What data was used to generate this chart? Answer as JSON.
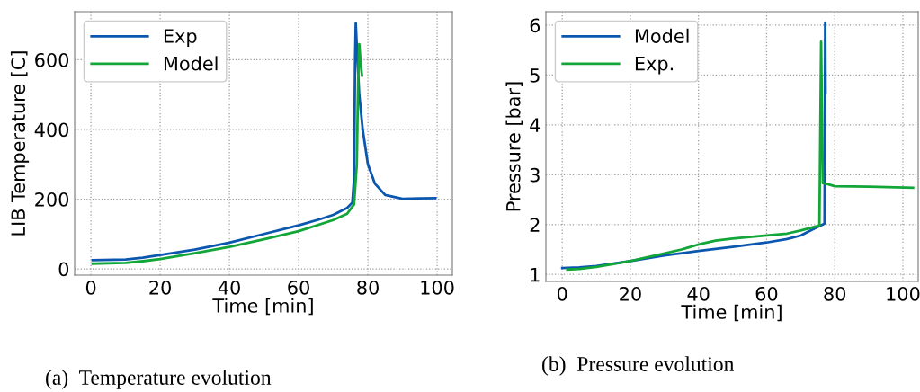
{
  "chart_data": [
    {
      "type": "line",
      "xlabel": "Time [min]",
      "ylabel": "LIB Temperature [C]",
      "xlim": [
        -4.7,
        104.4
      ],
      "ylim": [
        -18,
        738
      ],
      "xticks": [
        0,
        20,
        40,
        60,
        80,
        100
      ],
      "yticks": [
        0,
        200,
        400,
        600
      ],
      "grid": true,
      "legend": "top left",
      "annotations": [
        "(a)  Temperature evolution"
      ],
      "series": [
        {
          "name": "Exp",
          "color": "#0b57b0",
          "x": [
            0.5,
            10,
            15,
            20,
            30,
            40,
            50,
            60,
            66,
            70,
            74,
            75.5,
            76,
            76.3,
            76.5,
            76.8,
            77.5,
            78.5,
            80,
            82,
            85,
            90,
            95,
            99.5
          ],
          "values": [
            25,
            27,
            32,
            40,
            55,
            75,
            100,
            125,
            142,
            155,
            175,
            190,
            260,
            600,
            705,
            640,
            500,
            400,
            300,
            245,
            212,
            201,
            202,
            203
          ]
        },
        {
          "name": "Model",
          "color": "#12a538",
          "x": [
            0.5,
            10,
            15,
            20,
            30,
            40,
            50,
            60,
            70,
            74,
            76,
            76.8,
            77.2,
            77.5,
            78,
            78.3
          ],
          "values": [
            15,
            17,
            22,
            28,
            45,
            63,
            85,
            108,
            140,
            158,
            185,
            300,
            550,
            645,
            580,
            555
          ]
        }
      ]
    },
    {
      "type": "line",
      "xlabel": "Time [min]",
      "ylabel": "Pressure [bar]",
      "xlim": [
        -4.8,
        104.5
      ],
      "ylim": [
        0.86,
        6.27
      ],
      "xticks": [
        0,
        20,
        40,
        60,
        80,
        100
      ],
      "yticks": [
        1,
        2,
        3,
        4,
        5,
        6
      ],
      "grid": true,
      "legend": "top left",
      "annotations": [
        "(b)  Pressure evolution"
      ],
      "series": [
        {
          "name": "Model",
          "color": "#0b57b0",
          "x": [
            0,
            5,
            10,
            20,
            30,
            40,
            50,
            60,
            66,
            70,
            74,
            77,
            77.2,
            77.3
          ],
          "values": [
            1.13,
            1.14,
            1.17,
            1.27,
            1.38,
            1.47,
            1.55,
            1.64,
            1.71,
            1.78,
            1.92,
            2.02,
            6.05,
            4.65
          ]
        },
        {
          "name": "Exp.",
          "color": "#12a538",
          "x": [
            1.5,
            5,
            10,
            20,
            30,
            35,
            40,
            45,
            50,
            60,
            66,
            70,
            75.5,
            76,
            76.5,
            78,
            80,
            90,
            103
          ],
          "values": [
            1.1,
            1.11,
            1.15,
            1.27,
            1.42,
            1.5,
            1.6,
            1.68,
            1.72,
            1.78,
            1.82,
            1.88,
            1.98,
            5.67,
            2.83,
            2.81,
            2.77,
            2.76,
            2.74
          ]
        }
      ]
    }
  ]
}
